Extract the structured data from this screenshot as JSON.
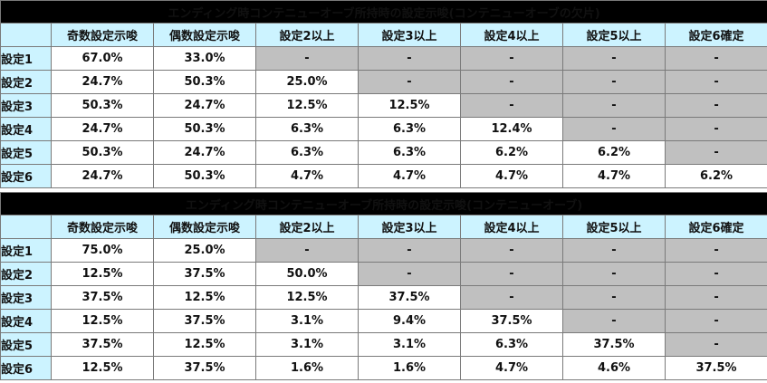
{
  "tables": [
    {
      "title": "エンディング時コンテニューオーブ所持時の設定示唆(コンテニューオーブの欠片)",
      "columns": [
        "",
        "奇数設定示唆",
        "偶数設定示唆",
        "設定2以上",
        "設定3以上",
        "設定4以上",
        "設定5以上",
        "設定6確定"
      ],
      "rows": [
        {
          "label": "設定1",
          "cells": [
            "67.0%",
            "33.0%",
            "-",
            "-",
            "-",
            "-",
            "-"
          ]
        },
        {
          "label": "設定2",
          "cells": [
            "24.7%",
            "50.3%",
            "25.0%",
            "-",
            "-",
            "-",
            "-"
          ]
        },
        {
          "label": "設定3",
          "cells": [
            "50.3%",
            "24.7%",
            "12.5%",
            "12.5%",
            "-",
            "-",
            "-"
          ]
        },
        {
          "label": "設定4",
          "cells": [
            "24.7%",
            "50.3%",
            "6.3%",
            "6.3%",
            "12.4%",
            "-",
            "-"
          ]
        },
        {
          "label": "設定5",
          "cells": [
            "50.3%",
            "24.7%",
            "6.3%",
            "6.3%",
            "6.2%",
            "6.2%",
            "-"
          ]
        },
        {
          "label": "設定6",
          "cells": [
            "24.7%",
            "50.3%",
            "4.7%",
            "4.7%",
            "4.7%",
            "4.7%",
            "6.2%"
          ]
        }
      ]
    },
    {
      "title": "エンディング時コンテニューオーブ所持時の設定示唆(コンテニューオーブ)",
      "columns": [
        "",
        "奇数設定示唆",
        "偶数設定示唆",
        "設定2以上",
        "設定3以上",
        "設定4以上",
        "設定5以上",
        "設定6確定"
      ],
      "rows": [
        {
          "label": "設定1",
          "cells": [
            "75.0%",
            "25.0%",
            "-",
            "-",
            "-",
            "-",
            "-"
          ]
        },
        {
          "label": "設定2",
          "cells": [
            "12.5%",
            "37.5%",
            "50.0%",
            "-",
            "-",
            "-",
            "-"
          ]
        },
        {
          "label": "設定3",
          "cells": [
            "37.5%",
            "12.5%",
            "12.5%",
            "37.5%",
            "-",
            "-",
            "-"
          ]
        },
        {
          "label": "設定4",
          "cells": [
            "12.5%",
            "37.5%",
            "3.1%",
            "9.4%",
            "37.5%",
            "-",
            "-"
          ]
        },
        {
          "label": "設定5",
          "cells": [
            "37.5%",
            "12.5%",
            "3.1%",
            "3.1%",
            "6.3%",
            "37.5%",
            "-"
          ]
        },
        {
          "label": "設定6",
          "cells": [
            "12.5%",
            "37.5%",
            "1.6%",
            "1.6%",
            "4.7%",
            "4.6%",
            "37.5%"
          ]
        }
      ]
    }
  ],
  "colors": {
    "title_bg": "#000000",
    "header_bg": "#ccf3ff",
    "disabled_bg": "#c0c0c0"
  }
}
